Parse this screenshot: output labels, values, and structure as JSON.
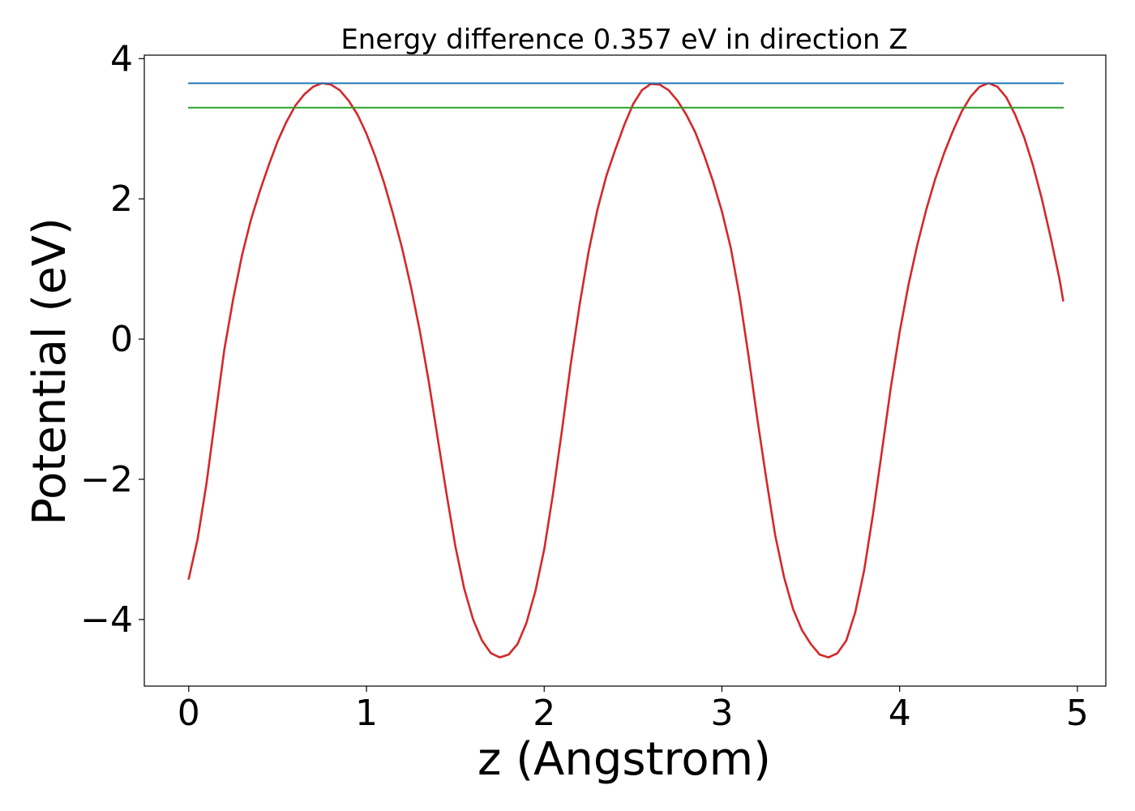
{
  "chart_data": {
    "type": "line",
    "title": "Energy difference 0.357 eV in direction Z",
    "xlabel": "z (Angstrom)",
    "ylabel": "Potential (eV)",
    "xlim": [
      -0.25,
      5.16
    ],
    "ylim": [
      -4.95,
      4.05
    ],
    "xticks": [
      0,
      1,
      2,
      3,
      4,
      5
    ],
    "xtick_labels": [
      "0",
      "1",
      "2",
      "3",
      "4",
      "5"
    ],
    "yticks": [
      -4,
      -2,
      0,
      2,
      4
    ],
    "ytick_labels": [
      "−4",
      "−2",
      "0",
      "2",
      "4"
    ],
    "grid": false,
    "colors": {
      "potential": "#d62728",
      "upper_level": "#1f77b4",
      "lower_level": "#2ca02c"
    },
    "series": [
      {
        "key": "potential",
        "x": [
          0.0,
          0.05,
          0.1,
          0.15,
          0.2,
          0.25,
          0.3,
          0.35,
          0.4,
          0.45,
          0.5,
          0.55,
          0.6,
          0.65,
          0.7,
          0.75,
          0.8,
          0.85,
          0.9,
          0.95,
          1.0,
          1.05,
          1.1,
          1.15,
          1.2,
          1.25,
          1.3,
          1.35,
          1.4,
          1.45,
          1.5,
          1.55,
          1.6,
          1.65,
          1.7,
          1.75,
          1.8,
          1.85,
          1.9,
          1.95,
          2.0,
          2.05,
          2.1,
          2.15,
          2.2,
          2.25,
          2.3,
          2.35,
          2.4,
          2.45,
          2.5,
          2.55,
          2.6,
          2.65,
          2.7,
          2.75,
          2.8,
          2.85,
          2.9,
          2.95,
          3.0,
          3.05,
          3.1,
          3.15,
          3.2,
          3.25,
          3.3,
          3.35,
          3.4,
          3.45,
          3.5,
          3.55,
          3.6,
          3.65,
          3.7,
          3.75,
          3.8,
          3.85,
          3.9,
          3.95,
          4.0,
          4.05,
          4.1,
          4.15,
          4.2,
          4.25,
          4.3,
          4.35,
          4.4,
          4.45,
          4.5,
          4.55,
          4.6,
          4.65,
          4.7,
          4.75,
          4.8,
          4.85,
          4.9,
          4.92
        ],
        "y": [
          -3.42,
          -2.85,
          -2.06,
          -1.1,
          -0.15,
          0.57,
          1.2,
          1.7,
          2.11,
          2.48,
          2.82,
          3.1,
          3.33,
          3.49,
          3.6,
          3.65,
          3.63,
          3.55,
          3.4,
          3.2,
          2.93,
          2.6,
          2.22,
          1.78,
          1.3,
          0.75,
          0.12,
          -0.6,
          -1.4,
          -2.2,
          -2.95,
          -3.56,
          -4.0,
          -4.3,
          -4.48,
          -4.54,
          -4.5,
          -4.35,
          -4.05,
          -3.6,
          -3.0,
          -2.2,
          -1.3,
          -0.35,
          0.5,
          1.25,
          1.85,
          2.33,
          2.7,
          3.05,
          3.35,
          3.55,
          3.64,
          3.63,
          3.55,
          3.4,
          3.2,
          2.95,
          2.62,
          2.25,
          1.82,
          1.3,
          0.6,
          -0.25,
          -1.15,
          -2.0,
          -2.8,
          -3.4,
          -3.85,
          -4.15,
          -4.35,
          -4.5,
          -4.54,
          -4.48,
          -4.3,
          -3.9,
          -3.3,
          -2.5,
          -1.6,
          -0.7,
          0.1,
          0.78,
          1.35,
          1.85,
          2.28,
          2.65,
          2.97,
          3.25,
          3.46,
          3.6,
          3.65,
          3.6,
          3.45,
          3.2,
          2.88,
          2.48,
          2.0,
          1.45,
          0.85,
          0.55
        ]
      },
      {
        "key": "upper_level",
        "x": [
          0.0,
          4.92
        ],
        "y": [
          3.65,
          3.65
        ]
      },
      {
        "key": "lower_level",
        "x": [
          0.0,
          4.92
        ],
        "y": [
          3.3,
          3.3
        ]
      }
    ]
  }
}
